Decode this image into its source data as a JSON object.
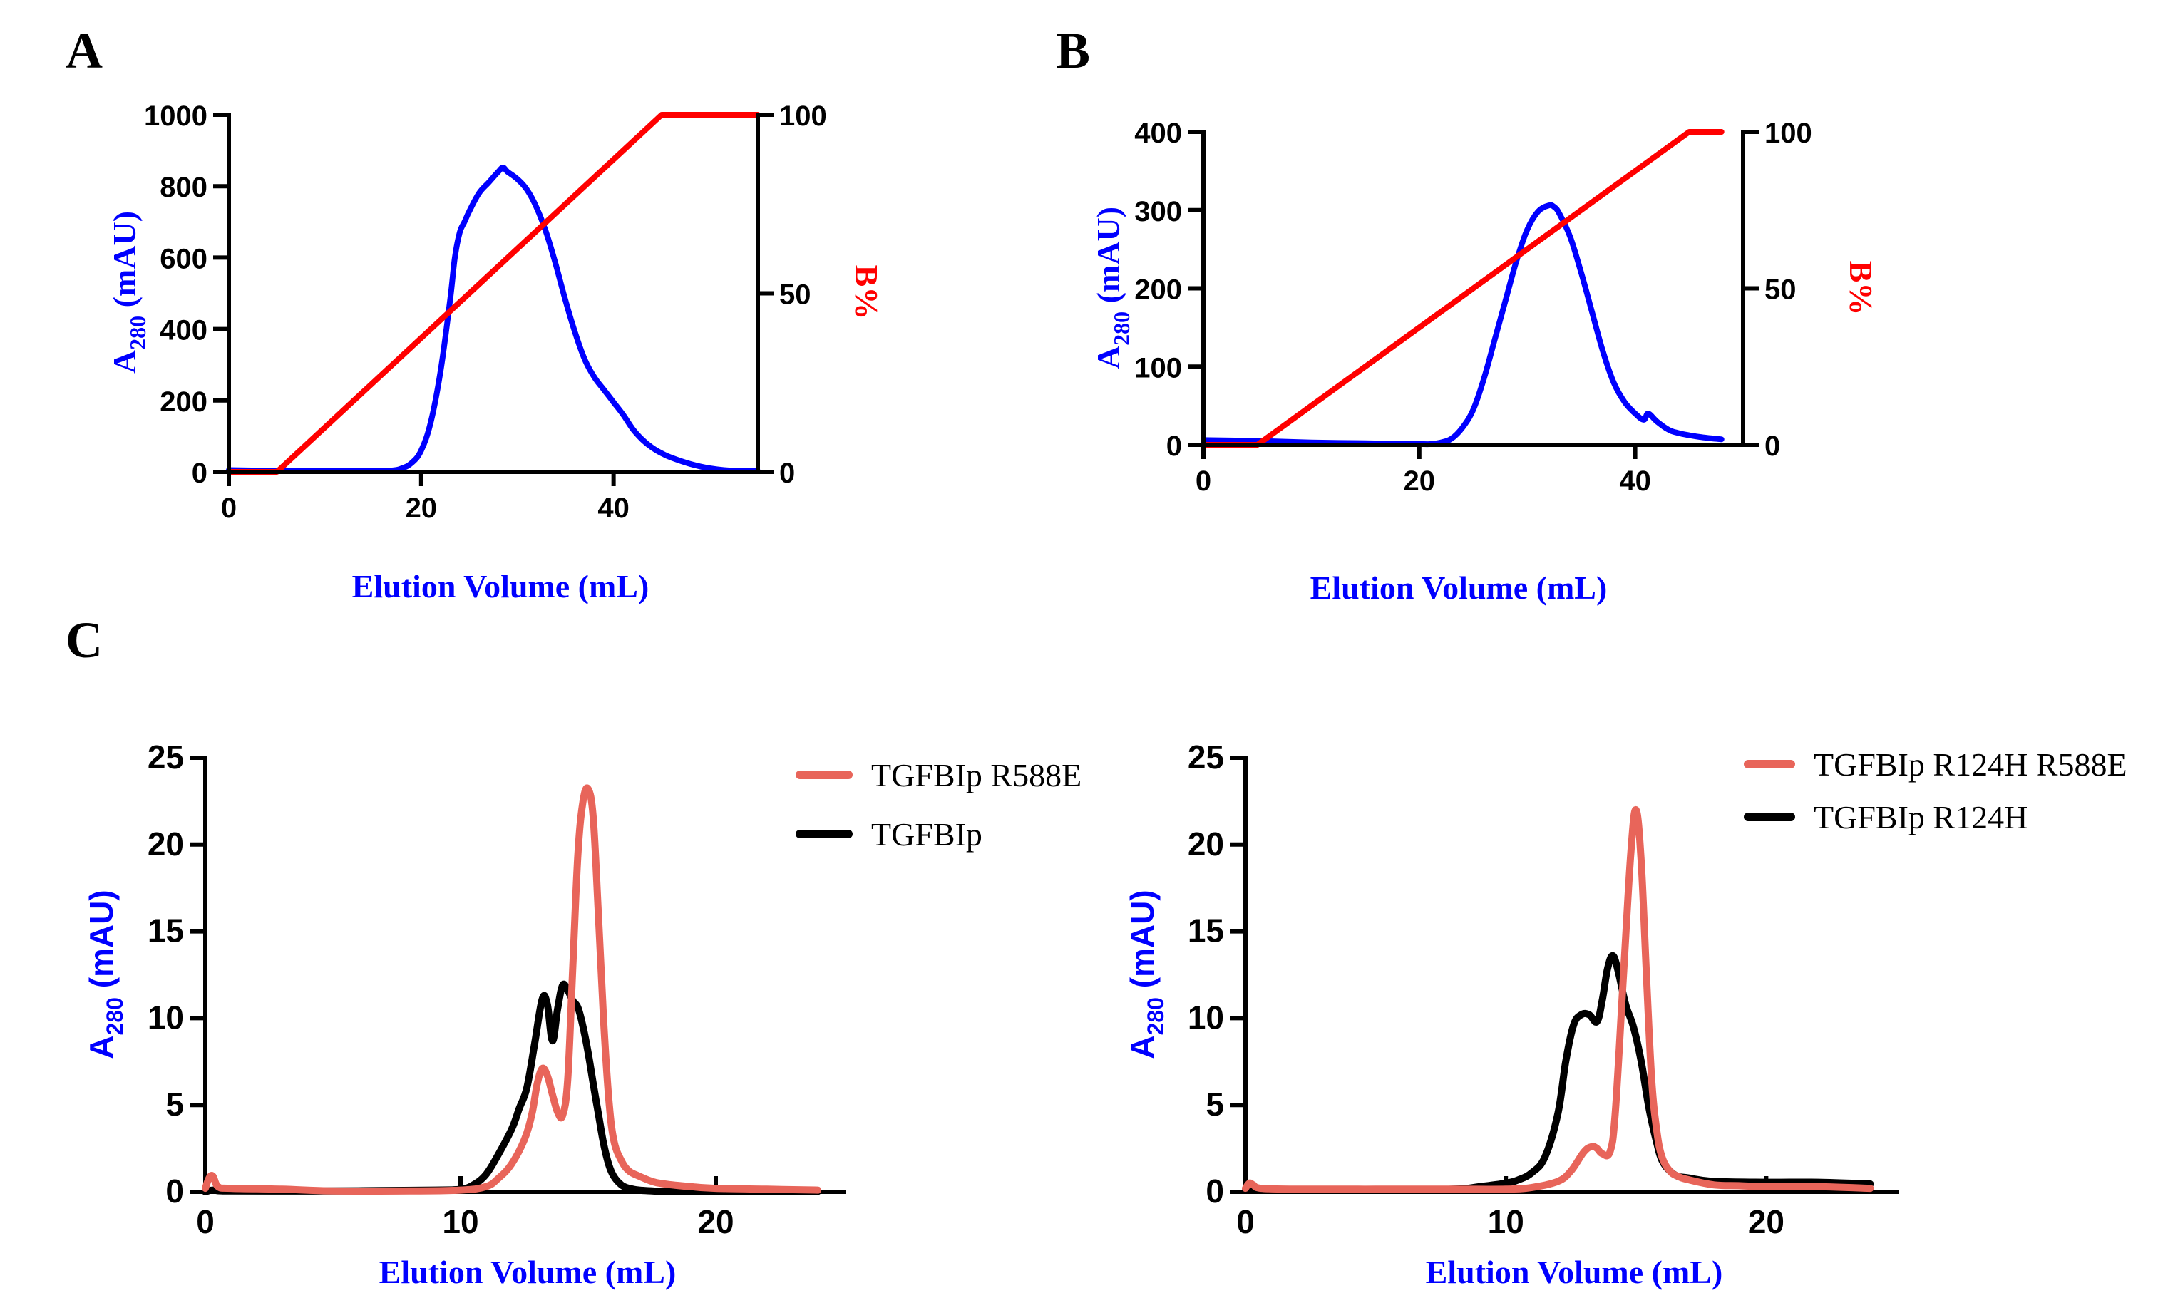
{
  "figure": {
    "panel_labels": [
      "A",
      "B",
      "C"
    ]
  },
  "colors": {
    "absorbance_ab": "#0000ff",
    "gradient": "#ff0000",
    "mutant": "#e8655a",
    "reference": "#000000",
    "axis_title_blue": "#0000ff"
  },
  "chart_data": [
    {
      "id": "A",
      "type": "line",
      "panel_label": "A",
      "title": "",
      "xlabel": "Elution Volume (mL)",
      "ylabel_main": "A",
      "ylabel_sub": "280",
      "ylabel_unit": " (mAU)",
      "y2label": "B%",
      "xlim": [
        0,
        55
      ],
      "ylim": [
        0,
        1000
      ],
      "y2lim": [
        0,
        100
      ],
      "xticks": [
        0,
        20,
        40
      ],
      "yticks": [
        0,
        200,
        400,
        600,
        800,
        1000
      ],
      "y2ticks": [
        0,
        50,
        100
      ],
      "grid": false,
      "series": [
        {
          "name": "A280",
          "axis": "left",
          "color": "#0000ff",
          "x": [
            0,
            5,
            10,
            15,
            17,
            18,
            19,
            20,
            21,
            22,
            23,
            23.5,
            24,
            24.5,
            25,
            26,
            27,
            28,
            28.5,
            29,
            30,
            31,
            32,
            33,
            34,
            35,
            36,
            37,
            38,
            39,
            40,
            41,
            42,
            43,
            44,
            45,
            46,
            48,
            50,
            52,
            55
          ],
          "y": [
            5,
            3,
            2,
            2,
            4,
            10,
            25,
            60,
            140,
            280,
            480,
            600,
            670,
            700,
            730,
            780,
            810,
            840,
            852,
            840,
            820,
            790,
            740,
            670,
            580,
            480,
            390,
            315,
            265,
            230,
            195,
            160,
            120,
            90,
            68,
            52,
            40,
            22,
            10,
            4,
            2
          ]
        },
        {
          "name": "B%",
          "axis": "right",
          "color": "#ff0000",
          "x": [
            0,
            5,
            45,
            55
          ],
          "y": [
            0,
            0,
            100,
            100
          ]
        }
      ]
    },
    {
      "id": "B",
      "type": "line",
      "panel_label": "B",
      "title": "",
      "xlabel": "Elution Volume (mL)",
      "ylabel_main": "A",
      "ylabel_sub": "280",
      "ylabel_unit": " (mAU)",
      "y2label": "B%",
      "xlim": [
        0,
        50
      ],
      "ylim": [
        0,
        400
      ],
      "y2lim": [
        0,
        100
      ],
      "xticks": [
        0,
        20,
        40
      ],
      "yticks": [
        0,
        100,
        200,
        300,
        400
      ],
      "y2ticks": [
        0,
        50,
        100
      ],
      "grid": false,
      "series": [
        {
          "name": "A280",
          "axis": "left",
          "color": "#0000ff",
          "x": [
            0,
            5,
            10,
            15,
            20,
            21,
            22,
            23,
            24,
            25,
            26,
            27,
            28,
            29,
            30,
            31,
            32,
            32.5,
            33,
            34,
            35,
            36,
            37,
            38,
            39,
            40,
            40.8,
            41.2,
            42,
            43,
            44,
            46,
            48
          ],
          "y": [
            6,
            5,
            3,
            2,
            1,
            1,
            3,
            8,
            22,
            45,
            85,
            135,
            185,
            235,
            275,
            298,
            306,
            304,
            295,
            265,
            220,
            170,
            120,
            80,
            55,
            40,
            32,
            40,
            30,
            20,
            15,
            10,
            7
          ]
        },
        {
          "name": "B%",
          "axis": "right",
          "color": "#ff0000",
          "x": [
            0,
            5,
            45,
            48
          ],
          "y": [
            0,
            0,
            100,
            100
          ]
        }
      ]
    },
    {
      "id": "C-left",
      "type": "line",
      "panel_label": "C",
      "title": "",
      "xlabel": "Elution Volume (mL)",
      "ylabel_main": "A",
      "ylabel_sub": "280",
      "ylabel_unit": " (mAU)",
      "xlim": [
        0,
        25
      ],
      "ylim": [
        0,
        25
      ],
      "xticks": [
        0,
        10,
        20
      ],
      "yticks": [
        0,
        5,
        10,
        15,
        20,
        25
      ],
      "grid": false,
      "legend": "top-right",
      "series": [
        {
          "name": "TGFBIp R588E",
          "color": "#e8655a",
          "x": [
            0,
            0.15,
            0.3,
            0.5,
            1,
            3,
            5,
            8,
            10,
            11,
            11.5,
            12,
            12.5,
            12.8,
            13,
            13.2,
            13.4,
            13.6,
            13.8,
            14,
            14.2,
            14.4,
            14.6,
            14.8,
            15,
            15.2,
            15.4,
            15.6,
            15.8,
            16,
            16.3,
            16.6,
            17,
            17.5,
            18,
            19,
            20,
            22,
            24
          ],
          "y": [
            0.2,
            0.8,
            0.9,
            0.3,
            0.2,
            0.15,
            0.05,
            0.05,
            0.1,
            0.3,
            0.8,
            1.6,
            3.0,
            4.5,
            6.2,
            7.1,
            6.7,
            5.6,
            4.6,
            4.4,
            6.5,
            13,
            19.5,
            22.5,
            23.2,
            21.5,
            16,
            10,
            5.5,
            3.0,
            1.8,
            1.2,
            0.9,
            0.6,
            0.45,
            0.3,
            0.2,
            0.15,
            0.1
          ]
        },
        {
          "name": "TGFBIp",
          "color": "#000000",
          "x": [
            0,
            0.3,
            1,
            5,
            9,
            10,
            10.5,
            11,
            11.5,
            12,
            12.3,
            12.6,
            12.9,
            13.2,
            13.4,
            13.6,
            13.8,
            14.0,
            14.2,
            14.4,
            14.6,
            14.8,
            15,
            15.2,
            15.4,
            15.6,
            15.8,
            16,
            16.3,
            16.6,
            17,
            17.5,
            18,
            20,
            24
          ],
          "y": [
            0,
            0.1,
            0.05,
            0.05,
            0.1,
            0.15,
            0.4,
            1.0,
            2.2,
            3.6,
            4.8,
            6.0,
            8.5,
            11.1,
            10.8,
            8.7,
            10.5,
            11.9,
            11.6,
            11.0,
            10.6,
            9.5,
            8.0,
            6.2,
            4.5,
            2.8,
            1.6,
            0.9,
            0.4,
            0.2,
            0.1,
            0.05,
            0.02,
            0.02,
            0.02
          ]
        }
      ]
    },
    {
      "id": "C-right",
      "type": "line",
      "panel_label": "",
      "title": "",
      "xlabel": "Elution Volume (mL)",
      "ylabel_main": "A",
      "ylabel_sub": "280",
      "ylabel_unit": " (mAU)",
      "xlim": [
        0,
        25
      ],
      "ylim": [
        0,
        25
      ],
      "xticks": [
        0,
        10,
        20
      ],
      "yticks": [
        0,
        5,
        10,
        15,
        20,
        25
      ],
      "grid": false,
      "legend": "top-right",
      "series": [
        {
          "name": "TGFBIp R124H R588E",
          "color": "#e8655a",
          "x": [
            0,
            0.15,
            0.3,
            0.6,
            2,
            5,
            8,
            10,
            11,
            12,
            12.5,
            13,
            13.3,
            13.5,
            13.7,
            14.0,
            14.2,
            14.5,
            14.8,
            15.0,
            15.2,
            15.4,
            15.6,
            15.8,
            16,
            16.3,
            16.6,
            17,
            18,
            19,
            20,
            22,
            24
          ],
          "y": [
            0.2,
            0.5,
            0.4,
            0.2,
            0.15,
            0.15,
            0.15,
            0.15,
            0.25,
            0.6,
            1.2,
            2.3,
            2.6,
            2.5,
            2.2,
            2.3,
            4.5,
            12,
            19.5,
            22.0,
            19,
            12.5,
            6.5,
            3.5,
            2.0,
            1.2,
            0.9,
            0.7,
            0.4,
            0.35,
            0.3,
            0.3,
            0.2
          ]
        },
        {
          "name": "TGFBIp R124H",
          "color": "#000000",
          "x": [
            0,
            1,
            5,
            8,
            9,
            10,
            10.5,
            11,
            11.5,
            12,
            12.3,
            12.6,
            12.9,
            13.2,
            13.5,
            13.7,
            13.9,
            14.1,
            14.3,
            14.6,
            14.9,
            15.2,
            15.5,
            15.8,
            16,
            16.3,
            16.6,
            17,
            18,
            20,
            22,
            24
          ],
          "y": [
            0.1,
            0.1,
            0.1,
            0.15,
            0.3,
            0.5,
            0.7,
            1.1,
            2.0,
            4.5,
            7.5,
            9.6,
            10.2,
            10.2,
            9.8,
            11.0,
            12.8,
            13.6,
            12.8,
            10.8,
            9.5,
            7.5,
            4.8,
            2.8,
            1.8,
            1.2,
            0.9,
            0.8,
            0.6,
            0.55,
            0.55,
            0.45
          ]
        }
      ]
    }
  ]
}
